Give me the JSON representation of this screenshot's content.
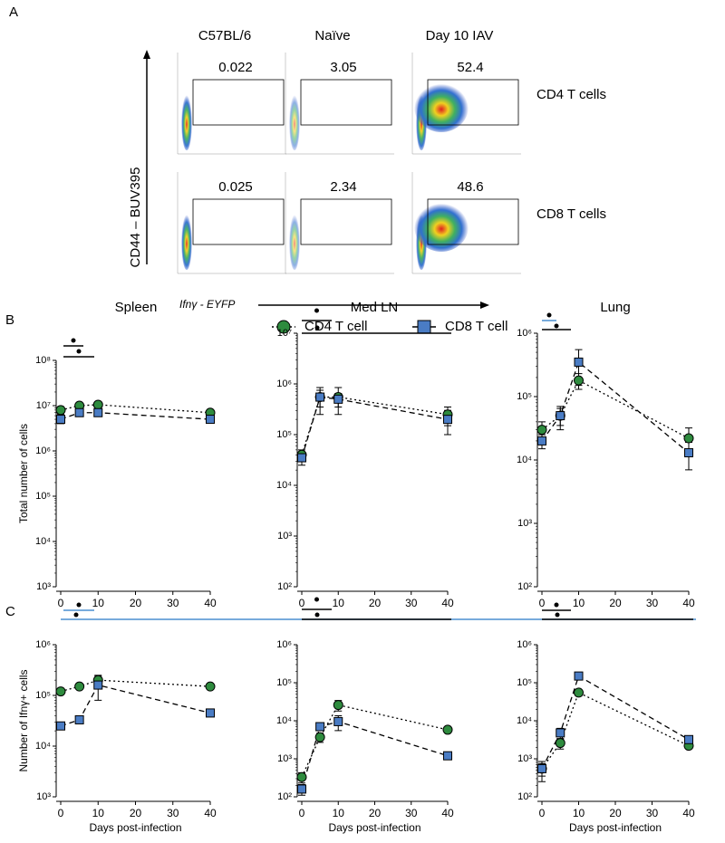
{
  "panel_labels": [
    "A",
    "B",
    "C"
  ],
  "flow_panel": {
    "column_titles": [
      "C57BL/6",
      "Naïve",
      "Day 10 IAV"
    ],
    "row_labels": [
      "CD4 T cells",
      "CD8 T cells"
    ],
    "gates": [
      [
        0.022,
        3.05,
        52.4
      ],
      [
        0.025,
        2.34,
        48.6
      ]
    ],
    "y_axis_label": "CD44 – BUV395",
    "x_axis_label": "Ifnγ - EYFP"
  },
  "chart_data": [
    {
      "type": "line",
      "title": "Spleen",
      "y_axis_label": "Total number of cells",
      "log_y": true,
      "x": [
        0,
        5,
        10,
        40
      ],
      "xlim": [
        0,
        40
      ],
      "xticks": [
        0,
        10,
        20,
        30,
        40
      ],
      "ylim": [
        1000,
        100000000
      ],
      "yticks": [
        {
          "value": 1000,
          "label": "10³"
        },
        {
          "value": 10000,
          "label": "10⁴"
        },
        {
          "value": 100000,
          "label": "10⁵"
        },
        {
          "value": 1000000,
          "label": "10⁶"
        },
        {
          "value": 10000000,
          "label": "10⁷"
        },
        {
          "value": 100000000,
          "label": "10⁸"
        }
      ],
      "series": [
        {
          "name": "CD4 T cell",
          "color": "#2e8b3e",
          "values": [
            8000000,
            10000000,
            10500000,
            7000000
          ],
          "errors": [
            1500000,
            1000000,
            1500000,
            1000000
          ]
        },
        {
          "name": "CD8 T cell",
          "color": "#4a7cc4",
          "values": [
            5000000,
            7000000,
            7000000,
            5000000
          ],
          "errors": [
            1000000,
            1000000,
            1000000,
            800000
          ]
        }
      ]
    },
    {
      "type": "line",
      "title": "Med LN",
      "log_y": true,
      "x": [
        0,
        5,
        10,
        40
      ],
      "xlim": [
        0,
        40
      ],
      "xticks": [
        0,
        10,
        20,
        30,
        40
      ],
      "ylim": [
        100,
        10000000
      ],
      "yticks": [
        {
          "value": 100,
          "label": "10²"
        },
        {
          "value": 1000,
          "label": "10³"
        },
        {
          "value": 10000,
          "label": "10⁴"
        },
        {
          "value": 100000,
          "label": "10⁵"
        },
        {
          "value": 1000000,
          "label": "10⁶"
        },
        {
          "value": 10000000,
          "label": "10⁷"
        }
      ],
      "series": [
        {
          "color": "#2e8b3e",
          "values": [
            40000,
            550000,
            550000,
            250000
          ],
          "errors": [
            10000,
            200000,
            300000,
            100000
          ]
        },
        {
          "color": "#4a7cc4",
          "values": [
            35000,
            550000,
            500000,
            200000
          ],
          "errors": [
            10000,
            300000,
            150000,
            100000
          ]
        }
      ]
    },
    {
      "type": "line",
      "title": "Lung",
      "log_y": true,
      "x": [
        0,
        5,
        10,
        40
      ],
      "xlim": [
        0,
        40
      ],
      "xticks": [
        0,
        10,
        20,
        30,
        40
      ],
      "ylim": [
        100,
        1000000
      ],
      "yticks": [
        {
          "value": 100,
          "label": "10²"
        },
        {
          "value": 1000,
          "label": "10³"
        },
        {
          "value": 10000,
          "label": "10⁴"
        },
        {
          "value": 100000,
          "label": "10⁵"
        },
        {
          "value": 1000000,
          "label": "10⁶"
        }
      ],
      "series": [
        {
          "color": "#2e8b3e",
          "values": [
            30000,
            50000,
            180000,
            22000
          ],
          "errors": [
            10000,
            15000,
            50000,
            10000
          ]
        },
        {
          "color": "#4a7cc4",
          "values": [
            20000,
            50000,
            350000,
            13000
          ],
          "errors": [
            5000,
            20000,
            200000,
            6000
          ]
        }
      ]
    },
    {
      "type": "line",
      "y_axis_label": "Number of Ifnγ+ cells",
      "x_axis_label": "Days post-infection",
      "log_y": true,
      "x": [
        0,
        5,
        10,
        40
      ],
      "xlim": [
        0,
        40
      ],
      "xticks": [
        0,
        10,
        20,
        30,
        40
      ],
      "ylim": [
        1000,
        1000000
      ],
      "yticks": [
        {
          "value": 1000,
          "label": "10³"
        },
        {
          "value": 10000,
          "label": "10⁴"
        },
        {
          "value": 100000,
          "label": "10⁵"
        },
        {
          "value": 1000000,
          "label": "10⁶"
        }
      ],
      "series": [
        {
          "color": "#2e8b3e",
          "values": [
            120000,
            150000,
            200000,
            150000
          ],
          "errors": [
            10000,
            10000,
            50000,
            10000
          ]
        },
        {
          "color": "#4a7cc4",
          "values": [
            25000,
            33000,
            160000,
            45000
          ],
          "errors": [
            3000,
            3000,
            80000,
            5000
          ]
        }
      ]
    },
    {
      "type": "line",
      "x_axis_label": "Days post-infection",
      "log_y": true,
      "x": [
        0,
        5,
        10,
        40
      ],
      "xlim": [
        0,
        40
      ],
      "xticks": [
        0,
        10,
        20,
        30,
        40
      ],
      "ylim": [
        100,
        1000000
      ],
      "yticks": [
        {
          "value": 100,
          "label": "10²"
        },
        {
          "value": 1000,
          "label": "10³"
        },
        {
          "value": 10000,
          "label": "10⁴"
        },
        {
          "value": 100000,
          "label": "10⁵"
        },
        {
          "value": 1000000,
          "label": "10⁶"
        }
      ],
      "series": [
        {
          "color": "#2e8b3e",
          "values": [
            330,
            3700,
            26000,
            5800
          ],
          "errors": [
            100,
            1000,
            8000,
            800
          ]
        },
        {
          "color": "#4a7cc4",
          "values": [
            160,
            7000,
            9500,
            1200
          ],
          "errors": [
            50,
            1500,
            4000,
            200
          ]
        }
      ]
    },
    {
      "type": "line",
      "x_axis_label": "Days post-infection",
      "log_y": true,
      "x": [
        0,
        5,
        10,
        40
      ],
      "xlim": [
        0,
        40
      ],
      "xticks": [
        0,
        10,
        20,
        30,
        40
      ],
      "ylim": [
        100,
        1000000
      ],
      "yticks": [
        {
          "value": 100,
          "label": "10²"
        },
        {
          "value": 1000,
          "label": "10³"
        },
        {
          "value": 10000,
          "label": "10⁴"
        },
        {
          "value": 100000,
          "label": "10⁵"
        },
        {
          "value": 1000000,
          "label": "10⁶"
        }
      ],
      "series": [
        {
          "color": "#2e8b3e",
          "values": [
            550,
            2600,
            55000,
            2200
          ],
          "errors": [
            200,
            800,
            10000,
            300
          ]
        },
        {
          "color": "#4a7cc4",
          "values": [
            550,
            4800,
            150000,
            3200
          ],
          "errors": [
            300,
            1500,
            30000,
            500
          ]
        }
      ]
    }
  ]
}
